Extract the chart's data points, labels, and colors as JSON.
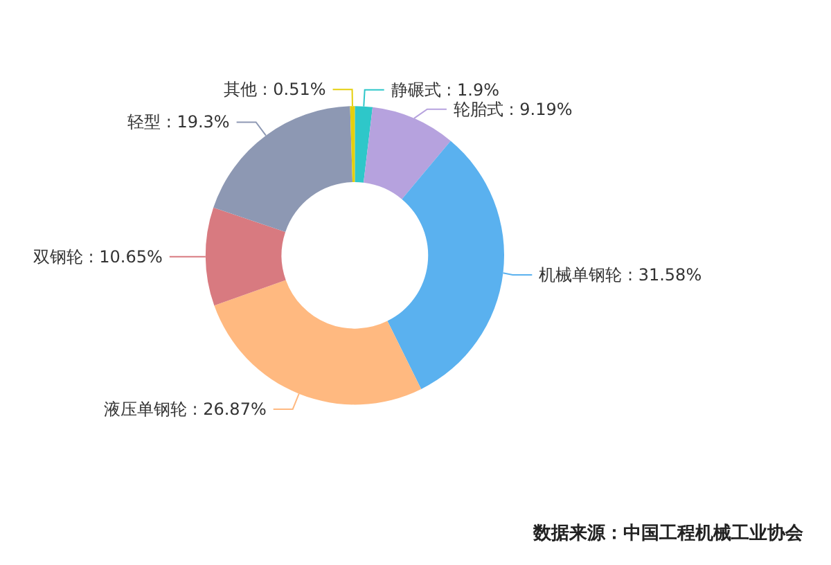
{
  "chart_data": {
    "type": "donut",
    "categories": [
      "静碾式",
      "轮胎式",
      "机械单钢轮",
      "液压单钢轮",
      "双钢轮",
      "轻型",
      "其他"
    ],
    "values": [
      1.9,
      9.19,
      31.58,
      26.87,
      10.65,
      19.3,
      0.51
    ],
    "value_labels": [
      "1.9%",
      "9.19%",
      "31.58%",
      "26.87%",
      "10.65%",
      "19.3%",
      "0.51%"
    ],
    "colors": [
      "#2ec7c9",
      "#b6a2de",
      "#5ab1ef",
      "#ffb980",
      "#d87a80",
      "#8d98b3",
      "#e5cf0d"
    ],
    "legend": false,
    "annotations": [
      "数据来源：中国工程机械工业协会"
    ]
  }
}
